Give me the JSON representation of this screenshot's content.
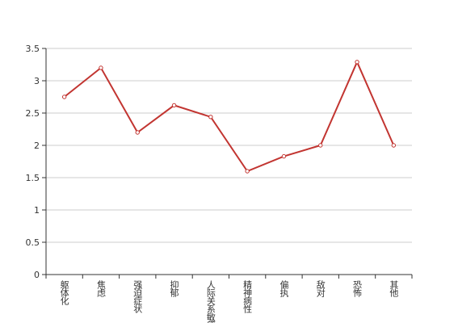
{
  "chart_data": {
    "type": "line",
    "categories": [
      "躯体化",
      "焦虑",
      "强迫症状",
      "抑郁",
      "人际关系敏感",
      "精神病性",
      "偏执",
      "敌对",
      "恐怖",
      "其他"
    ],
    "values": [
      2.75,
      3.2,
      2.2,
      2.62,
      2.44,
      1.6,
      1.83,
      2.0,
      3.29,
      2.0
    ],
    "color": "#c23531",
    "ylim": [
      0,
      3.5
    ],
    "yticks": [
      0,
      0.5,
      1,
      1.5,
      2,
      2.5,
      3,
      3.5
    ],
    "grid": true
  }
}
